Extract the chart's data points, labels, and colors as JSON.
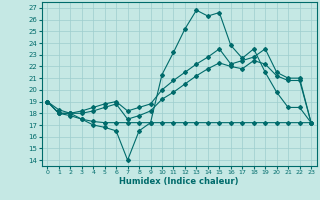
{
  "xlabel": "Humidex (Indice chaleur)",
  "xlim": [
    -0.5,
    23.5
  ],
  "ylim": [
    13.5,
    27.5
  ],
  "yticks": [
    14,
    15,
    16,
    17,
    18,
    19,
    20,
    21,
    22,
    23,
    24,
    25,
    26,
    27
  ],
  "xticks": [
    0,
    1,
    2,
    3,
    4,
    5,
    6,
    7,
    8,
    9,
    10,
    11,
    12,
    13,
    14,
    15,
    16,
    17,
    18,
    19,
    20,
    21,
    22,
    23
  ],
  "bg_color": "#c5e8e4",
  "line_color": "#006b6b",
  "grid_color": "#9ecece",
  "line1_x": [
    0,
    1,
    2,
    3,
    4,
    5,
    6,
    7,
    8,
    9,
    10,
    11,
    12,
    13,
    14,
    15,
    16,
    17,
    18,
    19,
    20,
    21,
    22,
    23
  ],
  "line1_y": [
    19.0,
    18.0,
    18.0,
    17.5,
    17.0,
    16.8,
    16.5,
    14.0,
    16.5,
    17.2,
    21.3,
    23.2,
    25.2,
    26.8,
    26.3,
    26.6,
    23.8,
    22.7,
    23.5,
    21.5,
    19.8,
    18.5,
    18.5,
    17.2
  ],
  "line2_x": [
    0,
    1,
    2,
    3,
    4,
    5,
    6,
    7,
    8,
    9,
    10,
    11,
    12,
    13,
    14,
    15,
    16,
    17,
    18,
    19,
    20,
    21,
    22,
    23
  ],
  "line2_y": [
    19.0,
    18.3,
    18.0,
    18.2,
    18.5,
    18.8,
    19.0,
    18.2,
    18.5,
    18.8,
    20.0,
    20.8,
    21.5,
    22.2,
    22.8,
    23.5,
    22.2,
    22.5,
    22.8,
    23.5,
    21.5,
    21.0,
    21.0,
    17.2
  ],
  "line3_x": [
    0,
    1,
    2,
    3,
    4,
    5,
    6,
    7,
    8,
    9,
    10,
    11,
    12,
    13,
    14,
    15,
    16,
    17,
    18,
    19,
    20,
    21,
    22,
    23
  ],
  "line3_y": [
    19.0,
    18.0,
    18.0,
    18.0,
    18.2,
    18.5,
    18.8,
    17.5,
    17.8,
    18.2,
    19.2,
    19.8,
    20.5,
    21.2,
    21.8,
    22.3,
    22.0,
    21.8,
    22.5,
    22.2,
    21.2,
    20.8,
    20.8,
    17.2
  ],
  "line4_x": [
    0,
    1,
    2,
    3,
    4,
    5,
    6,
    7,
    8,
    9,
    10,
    11,
    12,
    13,
    14,
    15,
    16,
    17,
    18,
    19,
    20,
    21,
    22,
    23
  ],
  "line4_y": [
    19.0,
    18.0,
    17.8,
    17.5,
    17.3,
    17.2,
    17.2,
    17.2,
    17.2,
    17.2,
    17.2,
    17.2,
    17.2,
    17.2,
    17.2,
    17.2,
    17.2,
    17.2,
    17.2,
    17.2,
    17.2,
    17.2,
    17.2,
    17.2
  ]
}
